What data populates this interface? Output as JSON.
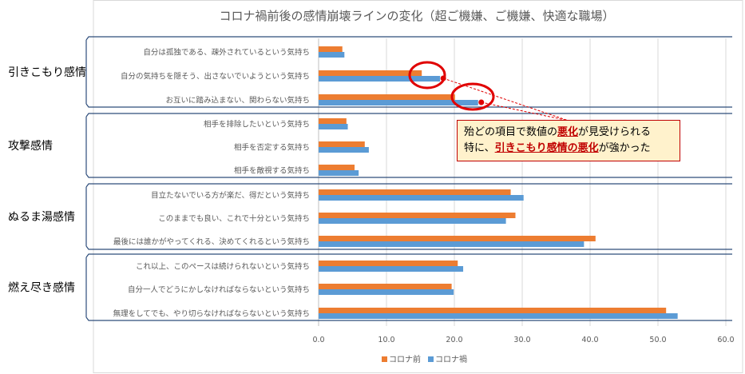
{
  "chart_data": {
    "type": "bar",
    "orientation": "horizontal",
    "title": "コロナ禍前後の感情崩壊ラインの変化（超ご機嫌、ご機嫌、快適な職場）",
    "xlim": [
      0,
      60
    ],
    "xticks": [
      "0.0",
      "10.0",
      "20.0",
      "30.0",
      "40.0",
      "50.0",
      "60.0"
    ],
    "grid": "vertical",
    "legend_position": "bottom",
    "series": [
      {
        "name": "コロナ前",
        "color": "#ed7d31"
      },
      {
        "name": "コロナ禍",
        "color": "#5b9bd5"
      }
    ],
    "groups": [
      {
        "label": "引きこもり感情",
        "rows": [
          0,
          1,
          2
        ]
      },
      {
        "label": "攻撃感情",
        "rows": [
          3,
          4,
          5
        ]
      },
      {
        "label": "ぬるま湯感情",
        "rows": [
          6,
          7,
          8
        ]
      },
      {
        "label": "燃え尽き感情",
        "rows": [
          9,
          10,
          11
        ]
      }
    ],
    "categories": [
      "自分は孤独である、疎外されているという気持ち",
      "自分の気持ちを隠そう、出さないでいようという気持ち",
      "お互いに踏み込まない、関わらない気持ち",
      "相手を排除したいという気持ち",
      "相手を否定する気持ち",
      "相手を敵視する気持ち",
      "目立たないでいる方が楽だ、得だという気持ち",
      "このままでも良い、これで十分という気持ち",
      "最後には誰かがやってくれる、決めてくれるという気持ち",
      "これ以上、このペースは続けられないという気持ち",
      "自分一人でどうにかしなければならないという気持ち",
      "無理をしてでも、やり切らなければならないという気持ち"
    ],
    "values": {
      "コロナ前": [
        3.5,
        15.2,
        20.1,
        4.1,
        6.8,
        5.3,
        28.3,
        29.0,
        40.8,
        20.5,
        19.6,
        51.2
      ],
      "コロナ禍": [
        3.8,
        17.9,
        23.5,
        4.3,
        7.4,
        5.9,
        30.2,
        27.6,
        39.1,
        21.3,
        19.9,
        52.9
      ]
    },
    "highlighted_rows": [
      1,
      2
    ],
    "annotation": {
      "before": "殆どの項目で数値の",
      "em1": "悪化",
      "middle": "が見受けられる",
      "line2_before": "特に、",
      "em2": "引きこもり感情の悪化",
      "line2_after": "が強かった"
    }
  }
}
